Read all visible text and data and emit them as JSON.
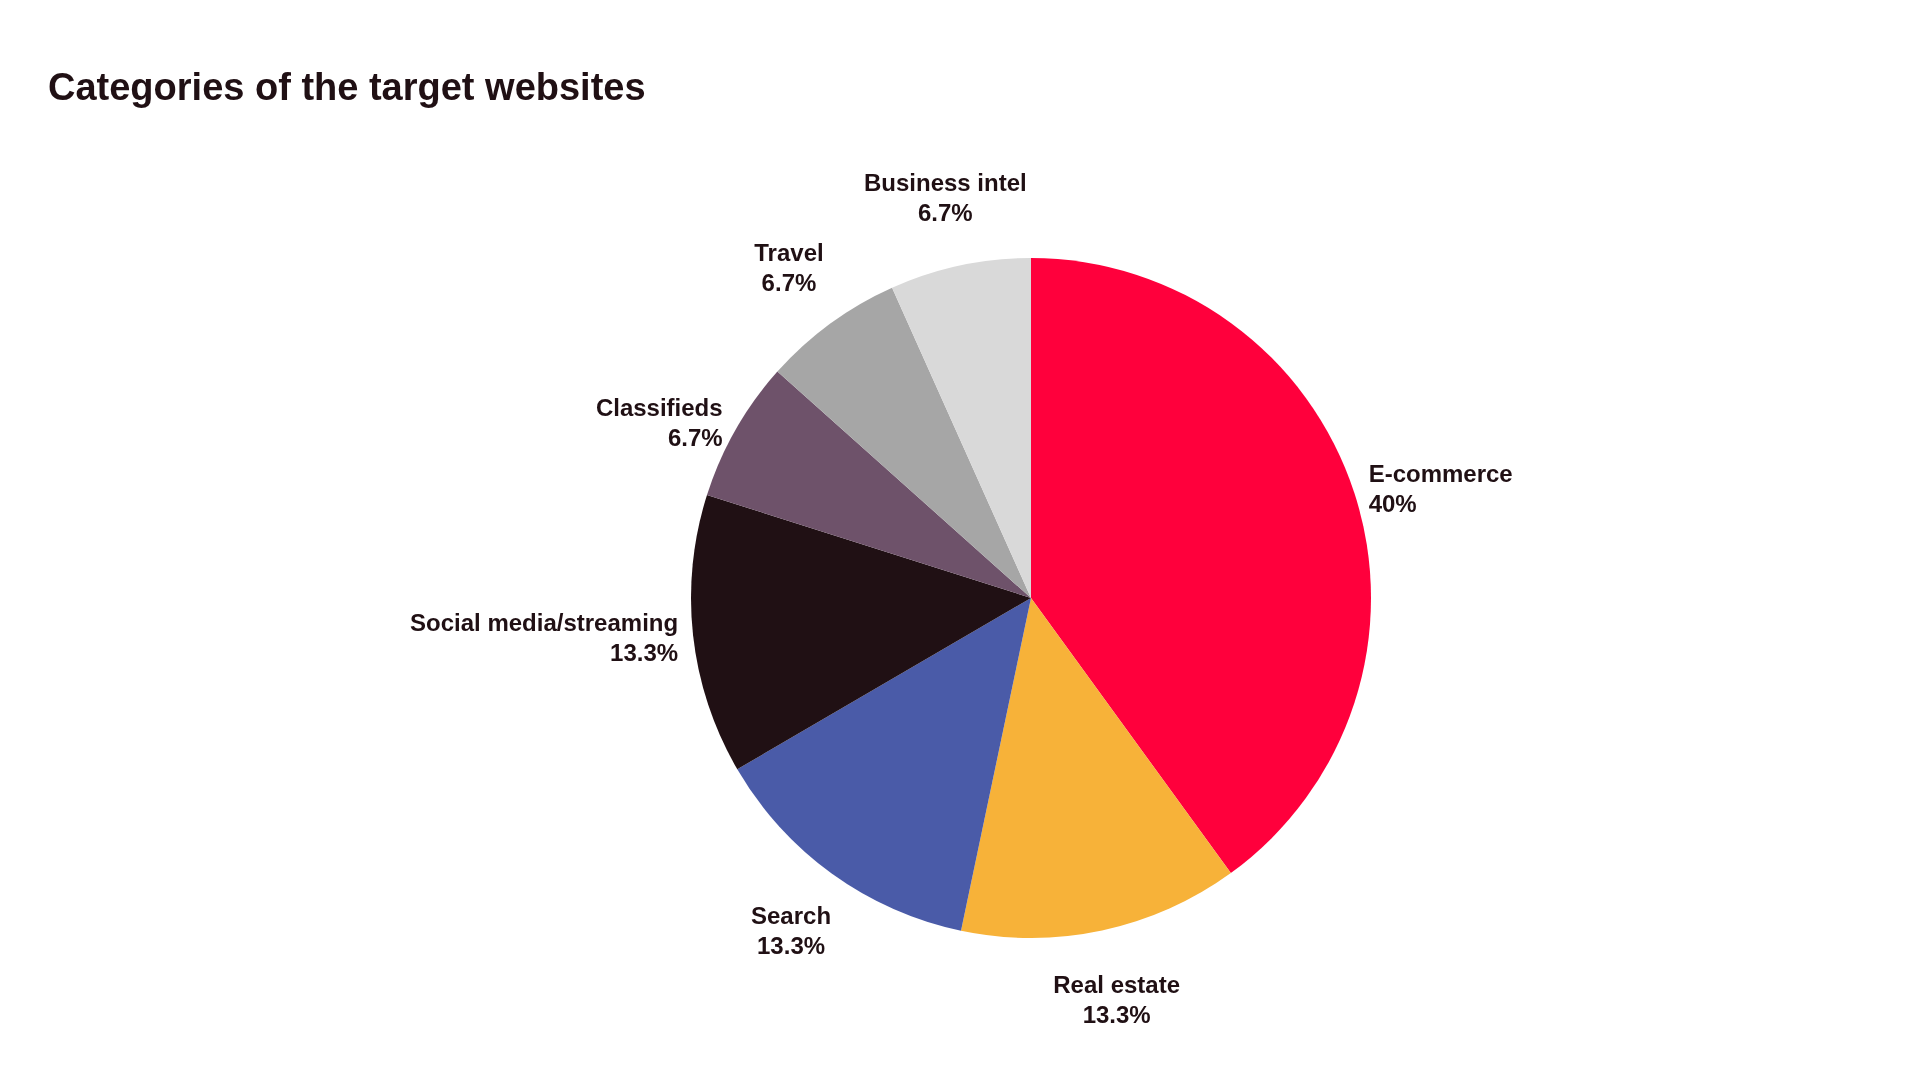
{
  "chart_data": {
    "type": "pie",
    "title": "Categories of the target websites",
    "categories": [
      "E-commerce",
      "Real estate",
      "Search",
      "Social media/streaming",
      "Classifieds",
      "Travel",
      "Business intel"
    ],
    "values": [
      40,
      13.3,
      13.3,
      13.3,
      6.7,
      6.7,
      6.7
    ],
    "value_labels": [
      "40%",
      "13.3%",
      "13.3%",
      "13.3%",
      "6.7%",
      "6.7%",
      "6.7%"
    ],
    "colors": [
      "#ff003c",
      "#f7b239",
      "#4a5ba8",
      "#201014",
      "#6e526a",
      "#a6a6a6",
      "#d9d9d9"
    ],
    "legend": false
  }
}
